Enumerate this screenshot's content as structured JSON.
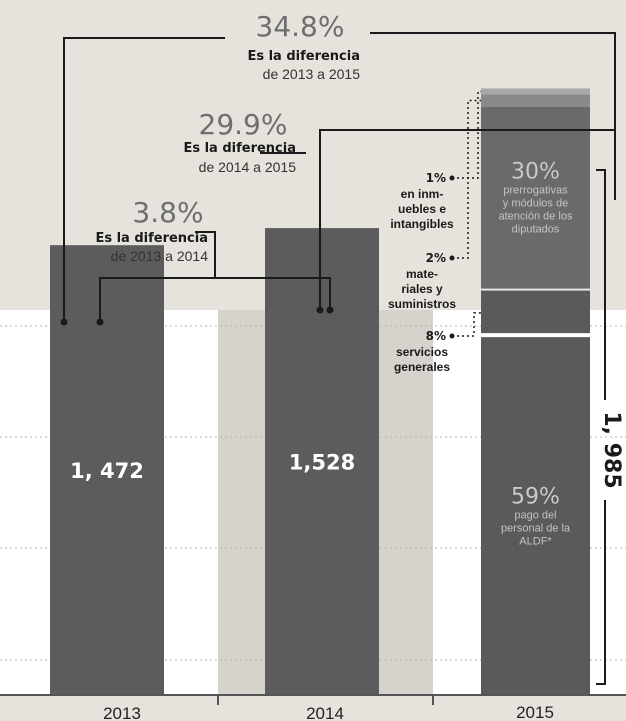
{
  "chart_data": {
    "type": "bar",
    "categories": [
      "2013",
      "2014",
      "2015"
    ],
    "values": [
      1472,
      1528,
      1985
    ],
    "value_labels": [
      "1, 472",
      "1,528",
      "1, 985"
    ],
    "ylim": [
      0,
      2150
    ],
    "grid": true,
    "differences": [
      {
        "pct": "34.8%",
        "bold": "Es la diferencia",
        "range": "de 2013 a 2015"
      },
      {
        "pct": "29.9%",
        "bold": "Es la diferencia",
        "range": "de 2014 a 2015"
      },
      {
        "pct": "3.8%",
        "bold": "Es la diferencia",
        "range": "de 2013 a 2014"
      }
    ],
    "breakdown_2015": [
      {
        "pct": "59%",
        "share": 0.59,
        "lines": [
          "pago del",
          "personal de la",
          "ALDF*"
        ],
        "color": "#5a5a5a",
        "inside": true
      },
      {
        "pct": "8%",
        "share": 0.08,
        "lines": [
          "servicios",
          "generales"
        ],
        "color": "#5a5a5a",
        "inside": false
      },
      {
        "pct": "30%",
        "share": 0.3,
        "lines": [
          "prerrogativas",
          "y módulos de",
          "atención de los",
          "diputados"
        ],
        "color": "#6a6a6a",
        "inside": true
      },
      {
        "pct": "2%",
        "share": 0.02,
        "lines": [
          "mate-",
          "riales y",
          "suministros"
        ],
        "color": "#8a8a8a",
        "inside": false
      },
      {
        "pct": "1%",
        "share": 0.01,
        "lines": [
          "en inm-",
          "uebles e",
          "intangibles"
        ],
        "color": "#a8a8a8",
        "inside": false
      }
    ],
    "colors": {
      "bar": "#5c5c5c",
      "band_light": "#ffffff",
      "band_dark": "#d6d3cc"
    }
  }
}
